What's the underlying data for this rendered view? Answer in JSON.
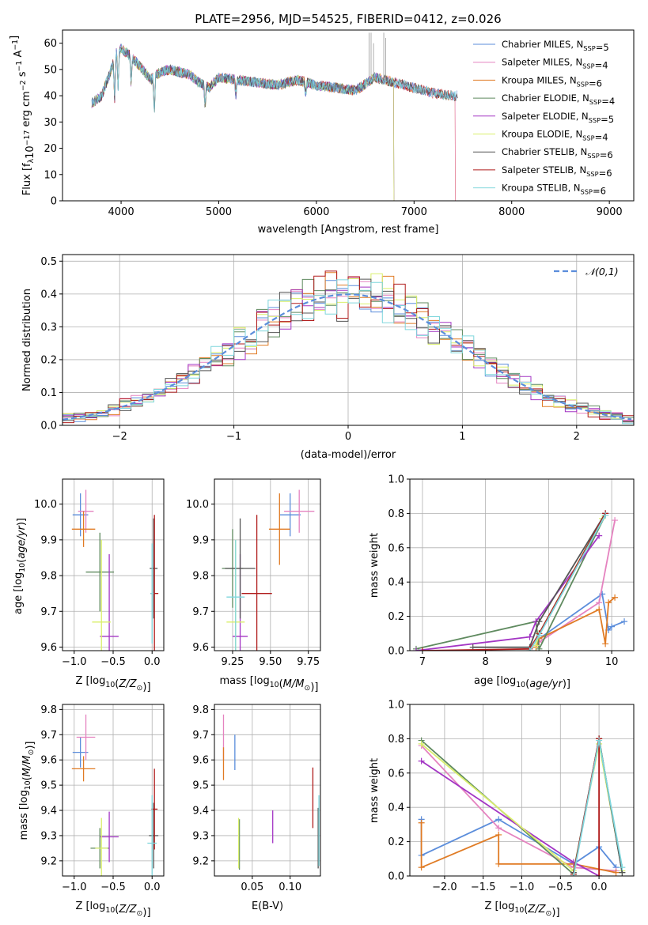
{
  "colors": {
    "Chabrier MILES": "#5b8ddb",
    "Salpeter MILES": "#e583c0",
    "Kroupa MILES": "#e07b24",
    "Chabrier ELODIE": "#5f8a5f",
    "Salpeter ELODIE": "#a335c4",
    "Kroupa ELODIE": "#d9ef6b",
    "Chabrier STELIB": "#555555",
    "Salpeter STELIB": "#b01c1c",
    "Kroupa STELIB": "#7fd6dc",
    "gaussian": "#5b8ddb"
  },
  "chart_data": [
    {
      "id": "spectrum",
      "type": "line",
      "title": "PLATE=2956, MJD=54525, FIBERID=0412, z=0.026",
      "xlabel": "wavelength [Angstrom, rest frame]",
      "ylabel": "Flux [f_λ 10^-17 erg cm^-2 s^-1 A^-1]",
      "xlim": [
        3400,
        9250
      ],
      "ylim": [
        0,
        65
      ],
      "xticks": [
        4000,
        5000,
        6000,
        7000,
        8000,
        9000
      ],
      "yticks": [
        0,
        10,
        20,
        30,
        40,
        50,
        60
      ],
      "grid": false,
      "legend_position": "top-right",
      "series": [
        {
          "name": "Chabrier MILES",
          "nssp": "5"
        },
        {
          "name": "Salpeter MILES",
          "nssp": "4"
        },
        {
          "name": "Kroupa MILES",
          "nssp": "6"
        },
        {
          "name": "Chabrier ELODIE",
          "nssp": "4"
        },
        {
          "name": "Salpeter ELODIE",
          "nssp": "5"
        },
        {
          "name": "Kroupa ELODIE",
          "nssp": "4"
        },
        {
          "name": "Chabrier STELIB",
          "nssp": "6"
        },
        {
          "name": "Salpeter STELIB",
          "nssp": "6"
        },
        {
          "name": "Kroupa STELIB",
          "nssp": "6"
        }
      ],
      "data_continuum": {
        "x": [
          3700,
          3800,
          3900,
          3950,
          4000,
          4100,
          4200,
          4300,
          4400,
          4500,
          4600,
          4700,
          4800,
          4900,
          5000,
          5200,
          5400,
          5600,
          5800,
          6000,
          6200,
          6400,
          6600,
          6800,
          7000,
          7200,
          7400
        ],
        "y": [
          37,
          40,
          50,
          56,
          58,
          55,
          51,
          46,
          49,
          50,
          49,
          48,
          45,
          43,
          47,
          46,
          45,
          44,
          46,
          44,
          43,
          42,
          47,
          45,
          43,
          41,
          40
        ]
      },
      "cutoffs": [
        {
          "series": "Kroupa MILES",
          "x": 7420
        },
        {
          "series": "Salpeter MILES",
          "x": 7420
        },
        {
          "series": "Kroupa ELODIE",
          "x": 6790
        },
        {
          "series": "Chabrier ELODIE",
          "x": 6790
        },
        {
          "series": "Salpeter ELODIE",
          "x": 6790
        }
      ]
    },
    {
      "id": "residuals",
      "type": "area",
      "xlabel": "(data-model)/error",
      "ylabel": "Normed distribution",
      "xlim": [
        -2.5,
        2.5
      ],
      "ylim": [
        0,
        0.52
      ],
      "xticks": [
        -2,
        -1,
        0,
        1,
        2
      ],
      "yticks": [
        0.0,
        0.1,
        0.2,
        0.3,
        0.4,
        0.5
      ],
      "grid": true,
      "legend_position": "top-right",
      "legend_label": "𝒩(0,1)",
      "bin_width": 0.1,
      "gaussian": {
        "mean": 0,
        "sigma": 1
      }
    },
    {
      "id": "age_vs_Z",
      "type": "scatter",
      "xlabel": "Z [log10(Z/Z☉)]",
      "ylabel": "age [log10(age/yr)]",
      "xlim": [
        -1.15,
        0.15
      ],
      "ylim": [
        9.59,
        10.07
      ],
      "xticks": [
        -1.0,
        -0.5,
        0.0
      ],
      "yticks": [
        9.6,
        9.7,
        9.8,
        9.9,
        10.0
      ],
      "grid": true,
      "points": [
        {
          "series": "Chabrier MILES",
          "x": -0.92,
          "y": 9.97,
          "xerr": 0.1,
          "yerr": 0.06
        },
        {
          "series": "Salpeter MILES",
          "x": -0.85,
          "y": 9.98,
          "xerr": 0.1,
          "yerr": 0.06
        },
        {
          "series": "Kroupa MILES",
          "x": -0.88,
          "y": 9.93,
          "xerr": 0.15,
          "yerr": 0.05
        },
        {
          "series": "Chabrier ELODIE",
          "x": -0.67,
          "y": 9.81,
          "xerr": 0.18,
          "yerr": 0.11
        },
        {
          "series": "Salpeter ELODIE",
          "x": -0.55,
          "y": 9.63,
          "xerr": 0.12,
          "yerr": 0.23
        },
        {
          "series": "Kroupa ELODIE",
          "x": -0.65,
          "y": 9.67,
          "xerr": 0.12,
          "yerr": 0.23
        },
        {
          "series": "Chabrier STELIB",
          "x": 0.02,
          "y": 9.82,
          "xerr": 0.05,
          "yerr": 0.14
        },
        {
          "series": "Salpeter STELIB",
          "x": 0.03,
          "y": 9.75,
          "xerr": 0.05,
          "yerr": 0.22
        },
        {
          "series": "Kroupa STELIB",
          "x": 0.0,
          "y": 9.75,
          "xerr": 0.02,
          "yerr": 0.14
        }
      ]
    },
    {
      "id": "age_vs_mass",
      "type": "scatter",
      "xlabel": "mass [log10(M/M☉)]",
      "ylabel": "",
      "xlim": [
        9.13,
        9.83
      ],
      "ylim": [
        9.59,
        10.07
      ],
      "xticks": [
        9.25,
        9.5,
        9.75
      ],
      "yticks": [
        9.6,
        9.7,
        9.8,
        9.9,
        10.0
      ],
      "grid": true,
      "points": [
        {
          "series": "Chabrier MILES",
          "x": 9.63,
          "y": 9.97,
          "xerr": 0.07,
          "yerr": 0.06
        },
        {
          "series": "Salpeter MILES",
          "x": 9.69,
          "y": 9.98,
          "xerr": 0.1,
          "yerr": 0.06
        },
        {
          "series": "Kroupa MILES",
          "x": 9.56,
          "y": 9.93,
          "xerr": 0.07,
          "yerr": 0.1
        },
        {
          "series": "Chabrier ELODIE",
          "x": 9.25,
          "y": 9.82,
          "xerr": 0.07,
          "yerr": 0.11
        },
        {
          "series": "Salpeter ELODIE",
          "x": 9.3,
          "y": 9.63,
          "xerr": 0.05,
          "yerr": 0.23
        },
        {
          "series": "Kroupa ELODIE",
          "x": 9.27,
          "y": 9.67,
          "xerr": 0.06,
          "yerr": 0.23
        },
        {
          "series": "Chabrier STELIB",
          "x": 9.3,
          "y": 9.82,
          "xerr": 0.1,
          "yerr": 0.14
        },
        {
          "series": "Salpeter STELIB",
          "x": 9.41,
          "y": 9.75,
          "xerr": 0.1,
          "yerr": 0.22
        },
        {
          "series": "Kroupa STELIB",
          "x": 9.27,
          "y": 9.74,
          "xerr": 0.06,
          "yerr": 0.16
        }
      ]
    },
    {
      "id": "weight_vs_age",
      "type": "line",
      "xlabel": "age [log10(age/yr)]",
      "ylabel": "mass weight",
      "xlim": [
        6.8,
        10.35
      ],
      "ylim": [
        0,
        1.0
      ],
      "xticks": [
        7,
        8,
        9,
        10
      ],
      "yticks": [
        0.0,
        0.2,
        0.4,
        0.6,
        0.8,
        1.0
      ],
      "grid": true,
      "series": [
        {
          "name": "Chabrier MILES",
          "x": [
            8.8,
            8.85,
            9.85,
            9.95,
            10.0,
            10.2
          ],
          "y": [
            0.03,
            0.07,
            0.33,
            0.12,
            0.14,
            0.17
          ]
        },
        {
          "name": "Salpeter MILES",
          "x": [
            8.8,
            8.85,
            9.8,
            10.05
          ],
          "y": [
            0.03,
            0.05,
            0.28,
            0.76
          ]
        },
        {
          "name": "Kroupa MILES",
          "x": [
            8.8,
            8.85,
            9.8,
            9.9,
            9.95,
            10.05
          ],
          "y": [
            0.02,
            0.07,
            0.24,
            0.04,
            0.28,
            0.31
          ]
        },
        {
          "name": "Chabrier ELODIE",
          "x": [
            6.9,
            8.8,
            8.85,
            9.9
          ],
          "y": [
            0.01,
            0.17,
            0.01,
            0.79
          ]
        },
        {
          "name": "Salpeter ELODIE",
          "x": [
            6.9,
            8.7,
            8.8,
            9.8
          ],
          "y": [
            0.0,
            0.08,
            0.17,
            0.67
          ]
        },
        {
          "name": "Kroupa ELODIE",
          "x": [
            8.8,
            8.85,
            9.85
          ],
          "y": [
            0.03,
            0.1,
            0.77
          ]
        },
        {
          "name": "Chabrier STELIB",
          "x": [
            7.8,
            8.7,
            8.85,
            9.9
          ],
          "y": [
            0.02,
            0.02,
            0.17,
            0.8
          ]
        },
        {
          "name": "Salpeter STELIB",
          "x": [
            7.0,
            8.7,
            8.85,
            9.9
          ],
          "y": [
            0.0,
            0.01,
            0.1,
            0.8
          ]
        },
        {
          "name": "Kroupa STELIB",
          "x": [
            8.7,
            8.85,
            9.9
          ],
          "y": [
            0.0,
            0.09,
            0.79
          ]
        }
      ]
    },
    {
      "id": "mass_vs_Z",
      "type": "scatter",
      "xlabel": "Z [log10(Z/Z☉)]",
      "ylabel": "mass [log10(M/M☉)]",
      "xlim": [
        -1.15,
        0.15
      ],
      "ylim": [
        9.14,
        9.82
      ],
      "xticks": [
        -1.0,
        -0.5,
        0.0
      ],
      "yticks": [
        9.2,
        9.3,
        9.4,
        9.5,
        9.6,
        9.7,
        9.8
      ],
      "grid": true,
      "points": [
        {
          "series": "Chabrier MILES",
          "x": -0.92,
          "y": 9.63,
          "xerr": 0.1,
          "yerr": 0.06
        },
        {
          "series": "Salpeter MILES",
          "x": -0.85,
          "y": 9.69,
          "xerr": 0.12,
          "yerr": 0.09
        },
        {
          "series": "Kroupa MILES",
          "x": -0.88,
          "y": 9.565,
          "xerr": 0.15,
          "yerr": 0.05
        },
        {
          "series": "Chabrier ELODIE",
          "x": -0.67,
          "y": 9.25,
          "xerr": 0.12,
          "yerr": 0.08
        },
        {
          "series": "Salpeter ELODIE",
          "x": -0.55,
          "y": 9.295,
          "xerr": 0.12,
          "yerr": 0.1
        },
        {
          "series": "Kroupa ELODIE",
          "x": -0.65,
          "y": 9.25,
          "xerr": 0.08,
          "yerr": 0.12
        },
        {
          "series": "Chabrier STELIB",
          "x": 0.02,
          "y": 9.3,
          "xerr": 0.06,
          "yerr": 0.13
        },
        {
          "series": "Salpeter STELIB",
          "x": 0.03,
          "y": 9.405,
          "xerr": 0.04,
          "yerr": 0.16
        },
        {
          "series": "Kroupa STELIB",
          "x": 0.0,
          "y": 9.27,
          "xerr": 0.06,
          "yerr": 0.19
        }
      ]
    },
    {
      "id": "mass_vs_ebv",
      "type": "scatter",
      "xlabel": "E(B-V)",
      "ylabel": "",
      "xlim": [
        0.0,
        0.14
      ],
      "ylim": [
        9.14,
        9.82
      ],
      "xticks": [
        0.05,
        0.1
      ],
      "yticks": [
        9.2,
        9.3,
        9.4,
        9.5,
        9.6,
        9.7,
        9.8
      ],
      "grid": true,
      "points": [
        {
          "series": "Chabrier MILES",
          "x": 0.027,
          "y": 9.63,
          "yerr": 0.07
        },
        {
          "series": "Salpeter MILES",
          "x": 0.012,
          "y": 9.69,
          "yerr": 0.09
        },
        {
          "series": "Kroupa MILES",
          "x": 0.012,
          "y": 9.585,
          "yerr": 0.065
        },
        {
          "series": "Chabrier ELODIE",
          "x": 0.033,
          "y": 9.265,
          "yerr": 0.1
        },
        {
          "series": "Salpeter ELODIE",
          "x": 0.077,
          "y": 9.335,
          "yerr": 0.065
        },
        {
          "series": "Kroupa ELODIE",
          "x": 0.032,
          "y": 9.27,
          "yerr": 0.1
        },
        {
          "series": "Chabrier STELIB",
          "x": 0.137,
          "y": 9.29,
          "yerr": 0.12
        },
        {
          "series": "Salpeter STELIB",
          "x": 0.13,
          "y": 9.45,
          "yerr": 0.12
        },
        {
          "series": "Kroupa STELIB",
          "x": 0.138,
          "y": 9.32,
          "yerr": 0.14
        }
      ]
    },
    {
      "id": "weight_vs_Z",
      "type": "line",
      "xlabel": "Z [log10(Z/Z☉)]",
      "ylabel": "mass weight",
      "xlim": [
        -2.45,
        0.45
      ],
      "ylim": [
        0,
        1.0
      ],
      "xticks": [
        -2.0,
        -1.5,
        -1.0,
        -0.5,
        0.0
      ],
      "yticks": [
        0.0,
        0.2,
        0.4,
        0.6,
        0.8,
        1.0
      ],
      "grid": true,
      "series": [
        {
          "name": "Chabrier MILES",
          "x": [
            -2.3,
            -2.3,
            -1.3,
            -0.33,
            0.0,
            0.22
          ],
          "y": [
            0.33,
            0.12,
            0.33,
            0.07,
            0.17,
            0.05
          ]
        },
        {
          "name": "Salpeter MILES",
          "x": [
            -2.3,
            -1.3,
            -0.33,
            0.22
          ],
          "y": [
            0.76,
            0.28,
            0.05,
            0.03
          ]
        },
        {
          "name": "Kroupa MILES",
          "x": [
            -2.3,
            -2.3,
            -1.3,
            -1.3,
            -0.33,
            0.22
          ],
          "y": [
            0.31,
            0.05,
            0.24,
            0.07,
            0.07,
            0.02
          ]
        },
        {
          "name": "Chabrier ELODIE",
          "x": [
            -2.3,
            -0.33,
            0.0,
            0.3
          ],
          "y": [
            0.79,
            0.01,
            0.8,
            0.02
          ]
        },
        {
          "name": "Salpeter ELODIE",
          "x": [
            -2.3,
            -0.33,
            0.0
          ],
          "y": [
            0.67,
            0.08,
            0.0
          ]
        },
        {
          "name": "Kroupa ELODIE",
          "x": [
            -2.3,
            -0.33,
            0.0,
            0.3
          ],
          "y": [
            0.77,
            0.03,
            0.77,
            0.03
          ]
        },
        {
          "name": "Chabrier STELIB",
          "x": [
            -0.33,
            0.0,
            0.3
          ],
          "y": [
            0.02,
            0.8,
            0.02
          ]
        },
        {
          "name": "Salpeter STELIB",
          "x": [
            -0.33,
            0.0,
            0.0
          ],
          "y": [
            0.01,
            0.8,
            0.0
          ]
        },
        {
          "name": "Kroupa STELIB",
          "x": [
            -0.33,
            0.0,
            0.3
          ],
          "y": [
            0.0,
            0.79,
            0.05
          ]
        }
      ]
    }
  ]
}
